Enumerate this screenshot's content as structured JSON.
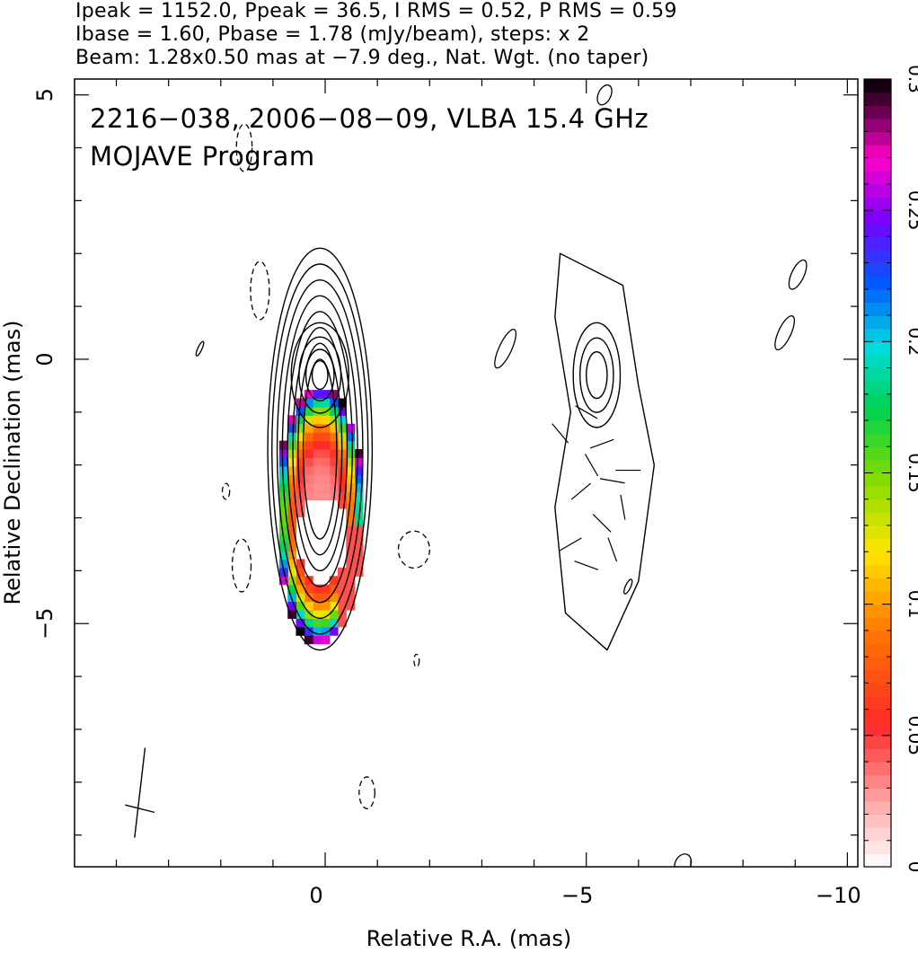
{
  "header": {
    "line1": "Ipeak = 1152.0, Ppeak = 36.5, I RMS = 0.52, P RMS = 0.59",
    "line2": "Ibase = 1.60, Pbase = 1.78 (mJy/beam), steps: x 2",
    "line3": "Beam: 1.28x0.50 mas at −7.9 deg., Nat. Wgt. (no taper)"
  },
  "chart_data": {
    "type": "heatmap",
    "title": "2216−038, 2006−08−09, VLBA 15.4 GHz",
    "subtitle": "MOJAVE Program",
    "xlabel": "Relative R.A. (mas)",
    "ylabel": "Relative Declination (mas)",
    "xlim": [
      4.8,
      -10.2
    ],
    "ylim": [
      -9.6,
      5.3
    ],
    "xticks": [
      0,
      -5,
      -10
    ],
    "xtick_labels": [
      "0",
      "−5",
      "−10"
    ],
    "yticks": [
      5,
      0,
      -5
    ],
    "ytick_labels": [
      "5",
      "0",
      "−5"
    ],
    "colorbar": {
      "min": 0,
      "max": 0.3,
      "ticks": [
        0,
        0.05,
        0.1,
        0.15,
        0.2,
        0.25,
        0.3
      ],
      "tick_labels": [
        "0",
        "0.05",
        "0.1",
        "0.15",
        "0.2",
        "0.25",
        "0.3"
      ]
    },
    "left_panel": {
      "center": [
        0.1,
        -1.7
      ],
      "contour_radii_x": [
        1.0,
        0.92,
        0.82,
        0.72,
        0.62,
        0.52,
        0.42,
        0.32
      ],
      "contour_radii_y": [
        3.8,
        3.5,
        3.2,
        2.9,
        2.6,
        2.3,
        2.0,
        1.7
      ],
      "core": [
        0.1,
        -0.3
      ],
      "core_radii": [
        0.55,
        0.4,
        0.27,
        0.15
      ],
      "fractional_pol_core": 0.03,
      "fractional_pol_edge": 0.15
    },
    "right_panel": {
      "center": [
        -5.1,
        -1.9
      ],
      "outer_contour": [
        [
          -4.5,
          2.0
        ],
        [
          -5.7,
          1.4
        ],
        [
          -6.0,
          -0.5
        ],
        [
          -6.3,
          -2.0
        ],
        [
          -6.0,
          -4.2
        ],
        [
          -5.4,
          -5.5
        ],
        [
          -4.6,
          -4.8
        ],
        [
          -4.4,
          -2.8
        ],
        [
          -4.7,
          -1.0
        ],
        [
          -4.4,
          0.8
        ]
      ],
      "core": [
        -5.2,
        -0.3
      ],
      "core_radii": [
        0.45,
        0.32,
        0.2
      ],
      "ticks": [
        [
          -5.0,
          -1.0,
          30
        ],
        [
          -5.3,
          -1.6,
          -20
        ],
        [
          -5.1,
          -2.0,
          60
        ],
        [
          -5.5,
          -2.3,
          10
        ],
        [
          -4.9,
          -2.5,
          -40
        ],
        [
          -5.7,
          -2.8,
          80
        ],
        [
          -5.3,
          -3.1,
          45
        ],
        [
          -4.7,
          -3.5,
          -30
        ],
        [
          -5.0,
          -3.9,
          20
        ],
        [
          -5.5,
          -3.6,
          70
        ],
        [
          -5.8,
          -2.1,
          0
        ],
        [
          -4.5,
          -1.4,
          50
        ]
      ]
    },
    "dashed_contours": [
      [
        1.55,
        4.0,
        0.15,
        0.45
      ],
      [
        1.25,
        1.3,
        0.18,
        0.55
      ],
      [
        1.6,
        -3.9,
        0.18,
        0.5
      ],
      [
        1.9,
        -2.5,
        0.07,
        0.15
      ],
      [
        -1.7,
        -3.6,
        0.3,
        0.35
      ],
      [
        -1.75,
        -5.7,
        0.05,
        0.12
      ],
      [
        -0.8,
        -8.2,
        0.15,
        0.3
      ]
    ],
    "noise_contours": [
      [
        -5.35,
        5.0,
        0.12,
        0.2
      ],
      [
        -3.45,
        0.2,
        0.12,
        0.4
      ],
      [
        -9.05,
        1.6,
        0.12,
        0.3
      ],
      [
        -8.8,
        0.5,
        0.12,
        0.35
      ],
      [
        -6.85,
        -9.55,
        0.15,
        0.2
      ],
      [
        2.4,
        0.2,
        0.04,
        0.15
      ],
      [
        -5.8,
        -4.3,
        0.05,
        0.15
      ]
    ],
    "beam_marker": [
      3.55,
      -8.5
    ]
  }
}
